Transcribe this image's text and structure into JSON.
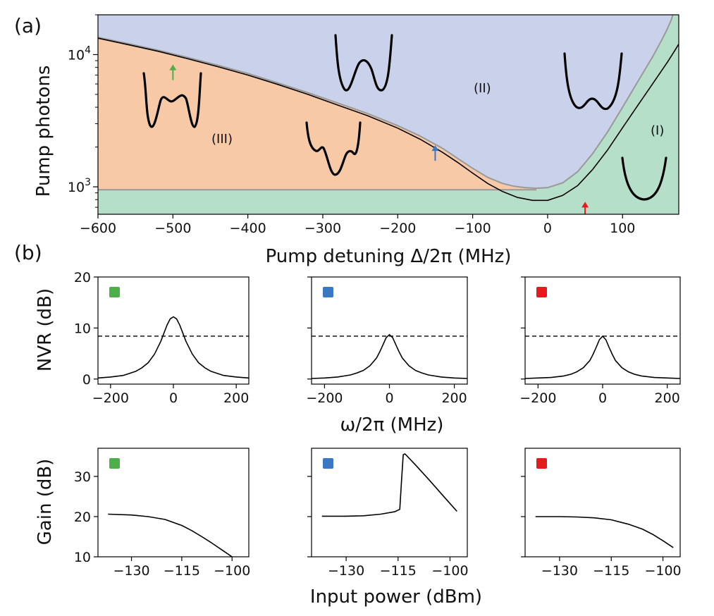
{
  "figure": {
    "panel_a_label": "(a)",
    "panel_b_label": "(b)"
  },
  "chart_data": [
    {
      "id": "phase_diagram",
      "type": "area",
      "xlabel": "Pump detuning Δ/2π (MHz)",
      "ylabel": "Pump photons",
      "xlim": [
        -600,
        175
      ],
      "ylim": [
        620,
        20000
      ],
      "yscale": "log",
      "x_ticks": [
        "−600",
        "−500",
        "−400",
        "−300",
        "−200",
        "−100",
        "0",
        "100"
      ],
      "x_tick_values": [
        -600,
        -500,
        -400,
        -300,
        -200,
        -100,
        0,
        100
      ],
      "y_ticks": [
        {
          "base": "10",
          "exp": "3",
          "value": 1000
        },
        {
          "base": "10",
          "exp": "4",
          "value": 10000
        }
      ],
      "region_labels": {
        "I": "(I)",
        "II": "(II)",
        "III": "(III)"
      },
      "colors": {
        "region_I": "#b5dfc9",
        "region_II": "#c9d2ea",
        "region_III": "#f7c9a7",
        "boundary": "#999999",
        "operating_curve": "#000000"
      },
      "boundary_upper": {
        "x": [
          -600,
          -560,
          -520,
          -480,
          -440,
          -400,
          -360,
          -320,
          -280,
          -240,
          -200,
          -170,
          -140,
          -120,
          -100,
          -80,
          -60,
          -45,
          -30,
          -15,
          0,
          20,
          40,
          60,
          80,
          100,
          120,
          140,
          150,
          158,
          165,
          167
        ],
        "y": [
          13500,
          12100,
          10800,
          9500,
          8300,
          7200,
          6100,
          5150,
          4300,
          3580,
          2900,
          2420,
          1950,
          1640,
          1380,
          1180,
          1060,
          1010,
          985,
          975,
          985,
          1070,
          1300,
          1780,
          2600,
          4000,
          6200,
          9600,
          12200,
          14900,
          18300,
          20000
        ]
      },
      "boundary_lower": {
        "y": 950,
        "x_range": [
          -600,
          -15
        ]
      },
      "operating_curve": {
        "x": [
          -600,
          -560,
          -520,
          -480,
          -440,
          -400,
          -360,
          -320,
          -280,
          -240,
          -200,
          -170,
          -140,
          -120,
          -100,
          -80,
          -60,
          -40,
          -20,
          0,
          20,
          40,
          60,
          80,
          100,
          120,
          140,
          160,
          170,
          175
        ],
        "y": [
          13300,
          11900,
          10600,
          9300,
          8100,
          7000,
          5950,
          5000,
          4150,
          3450,
          2780,
          2290,
          1820,
          1530,
          1270,
          1060,
          920,
          830,
          790,
          790,
          860,
          1020,
          1350,
          1900,
          2800,
          4100,
          6000,
          8800,
          10800,
          12000
        ]
      },
      "markers": [
        {
          "x": -500,
          "y": 8400,
          "color": "#4daf4a"
        },
        {
          "x": -150,
          "y": 2060,
          "color": "#3a78c3"
        },
        {
          "x": 50,
          "y": 770,
          "color": "#e41a1c"
        }
      ],
      "potential_sketches": [
        {
          "region": "III",
          "shape": "triple-well",
          "x": -490
        },
        {
          "region": "III",
          "shape": "double-well-asymmetric",
          "x": -290
        },
        {
          "region": "II",
          "shape": "double-well",
          "x": -250
        },
        {
          "region": "II",
          "shape": "shallow-double-well",
          "x": 50
        },
        {
          "region": "I",
          "shape": "single-well",
          "x": 130
        }
      ]
    },
    {
      "id": "nvr_green",
      "type": "line",
      "marker_color": "#4daf4a",
      "ylabel": "NVR (dB)",
      "xlabel": "",
      "xlim": [
        -240,
        240
      ],
      "ylim": [
        -1,
        20
      ],
      "x_ticks": [
        "−200",
        "0",
        "200"
      ],
      "x_tick_values": [
        -200,
        0,
        200
      ],
      "y_ticks": [
        "0",
        "10",
        "20"
      ],
      "y_tick_values": [
        0,
        10,
        20
      ],
      "threshold": 8.4,
      "x": [
        -240,
        -200,
        -160,
        -120,
        -100,
        -80,
        -60,
        -40,
        -30,
        -20,
        -10,
        0,
        10,
        20,
        30,
        40,
        60,
        80,
        100,
        120,
        160,
        200,
        240
      ],
      "y": [
        0.2,
        0.4,
        0.7,
        1.5,
        2.2,
        3.2,
        4.9,
        7.4,
        9.0,
        10.6,
        11.8,
        12.2,
        11.8,
        10.6,
        9.0,
        7.4,
        4.9,
        3.2,
        2.2,
        1.5,
        0.7,
        0.4,
        0.2
      ]
    },
    {
      "id": "nvr_blue",
      "type": "line",
      "marker_color": "#3a78c3",
      "xlabel": "ω/2π (MHz)",
      "xlim": [
        -240,
        240
      ],
      "ylim": [
        -1,
        20
      ],
      "x_ticks": [
        "−200",
        "0",
        "200"
      ],
      "x_tick_values": [
        -200,
        0,
        200
      ],
      "threshold": 8.4,
      "x": [
        -240,
        -200,
        -160,
        -120,
        -100,
        -80,
        -60,
        -40,
        -30,
        -20,
        -10,
        0,
        10,
        20,
        30,
        40,
        60,
        80,
        100,
        120,
        160,
        200,
        240
      ],
      "y": [
        0.1,
        0.2,
        0.4,
        0.8,
        1.2,
        1.7,
        2.6,
        4.1,
        5.3,
        6.7,
        8.1,
        8.7,
        8.1,
        6.7,
        5.3,
        4.1,
        2.6,
        1.7,
        1.2,
        0.8,
        0.4,
        0.2,
        0.1
      ]
    },
    {
      "id": "nvr_red",
      "type": "line",
      "marker_color": "#e41a1c",
      "xlim": [
        -240,
        240
      ],
      "ylim": [
        -1,
        20
      ],
      "x_ticks": [
        "−200",
        "0",
        "200"
      ],
      "x_tick_values": [
        -200,
        0,
        200
      ],
      "threshold": 8.4,
      "x": [
        -240,
        -200,
        -160,
        -120,
        -100,
        -80,
        -60,
        -40,
        -30,
        -20,
        -10,
        0,
        10,
        20,
        30,
        40,
        60,
        80,
        100,
        120,
        160,
        200,
        240
      ],
      "y": [
        0.1,
        0.2,
        0.3,
        0.6,
        0.9,
        1.4,
        2.2,
        3.6,
        4.8,
        6.2,
        7.7,
        8.4,
        7.7,
        6.2,
        4.8,
        3.6,
        2.2,
        1.4,
        0.9,
        0.6,
        0.3,
        0.2,
        0.1
      ]
    },
    {
      "id": "gain_green",
      "type": "line",
      "marker_color": "#4daf4a",
      "ylabel": "Gain (dB)",
      "xlim": [
        -140,
        -95
      ],
      "ylim": [
        10,
        37
      ],
      "x_ticks": [
        "−130",
        "−115",
        "−100"
      ],
      "x_tick_values": [
        -130,
        -115,
        -100
      ],
      "y_ticks": [
        "10",
        "20",
        "30"
      ],
      "y_tick_values": [
        10,
        20,
        30
      ],
      "x": [
        -137,
        -130,
        -125,
        -120,
        -115,
        -112,
        -109,
        -106,
        -103,
        -100
      ],
      "y": [
        20.6,
        20.4,
        20.0,
        19.3,
        17.8,
        16.5,
        15.0,
        13.4,
        11.7,
        10.0
      ]
    },
    {
      "id": "gain_blue",
      "type": "line",
      "marker_color": "#3a78c3",
      "xlabel": "Input power (dBm)",
      "xlim": [
        -140,
        -95
      ],
      "ylim": [
        10,
        37
      ],
      "x_ticks": [
        "−130",
        "−115",
        "−100"
      ],
      "x_tick_values": [
        -130,
        -115,
        -100
      ],
      "x": [
        -137,
        -130,
        -125,
        -120,
        -116,
        -114.5,
        -114,
        -113.5,
        -113,
        -110,
        -106,
        -102,
        -98
      ],
      "y": [
        20.1,
        20.1,
        20.2,
        20.6,
        21.2,
        21.8,
        29.0,
        35.4,
        35.6,
        32.9,
        29.1,
        25.2,
        21.3
      ]
    },
    {
      "id": "gain_red",
      "type": "line",
      "marker_color": "#e41a1c",
      "xlim": [
        -140,
        -95
      ],
      "ylim": [
        10,
        37
      ],
      "x_ticks": [
        "−130",
        "−115",
        "−100"
      ],
      "x_tick_values": [
        -130,
        -115,
        -100
      ],
      "x": [
        -137,
        -130,
        -125,
        -120,
        -115,
        -110,
        -106,
        -103,
        -100,
        -97
      ],
      "y": [
        20.0,
        20.0,
        19.9,
        19.7,
        19.2,
        18.1,
        16.9,
        15.6,
        14.0,
        12.3
      ]
    }
  ]
}
